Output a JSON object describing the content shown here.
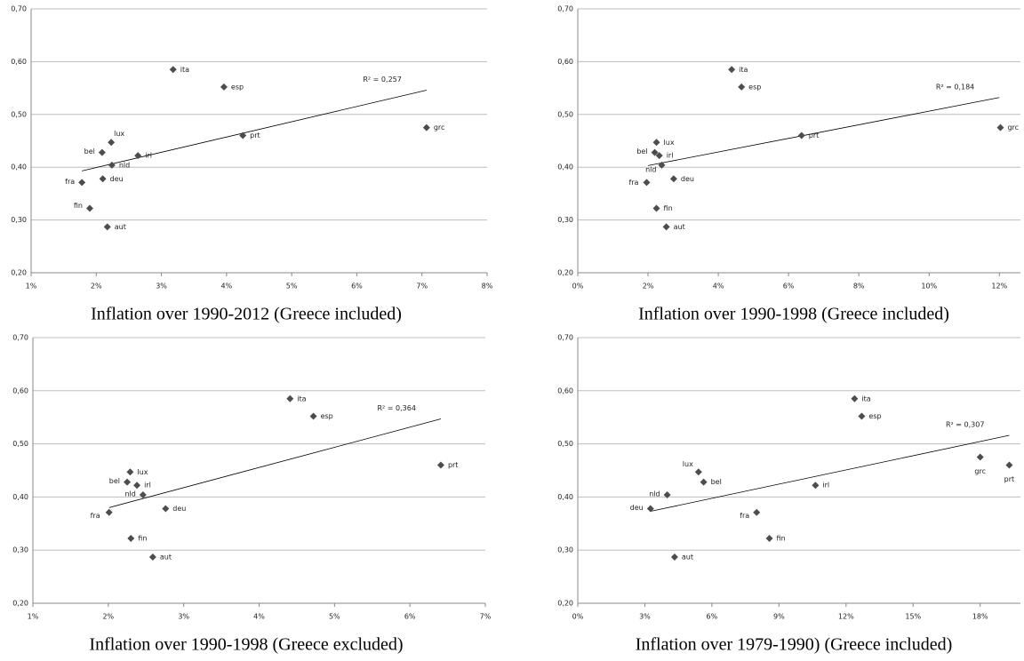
{
  "chart_data": [
    {
      "type": "scatter",
      "title": "Inflation over 1990-2012 (Greece included)",
      "labels": [
        "ita",
        "esp",
        "prt",
        "grc",
        "lux",
        "bel",
        "irl",
        "nld",
        "deu",
        "fra",
        "fin",
        "aut"
      ],
      "x": [
        3.18,
        3.96,
        4.25,
        7.07,
        2.23,
        2.09,
        2.64,
        2.24,
        2.1,
        1.78,
        1.9,
        2.17
      ],
      "y": [
        0.585,
        0.552,
        0.46,
        0.475,
        0.447,
        0.428,
        0.422,
        0.404,
        0.378,
        0.371,
        0.322,
        0.287
      ],
      "color": "#4d4d4d",
      "grid": true,
      "xlim": [
        1,
        8
      ],
      "ylim": [
        0.2,
        0.7
      ],
      "xticks": [
        {
          "value": 1,
          "label": "1%"
        },
        {
          "value": 2,
          "label": "2%"
        },
        {
          "value": 3,
          "label": "3%"
        },
        {
          "value": 4,
          "label": "4%"
        },
        {
          "value": 5,
          "label": "5%"
        },
        {
          "value": 6,
          "label": "6%"
        },
        {
          "value": 7,
          "label": "7%"
        },
        {
          "value": 8,
          "label": "8%"
        }
      ],
      "yticks": [
        {
          "value": 0.2,
          "label": "0,20"
        },
        {
          "value": 0.3,
          "label": "0,30"
        },
        {
          "value": 0.4,
          "label": "0,40"
        },
        {
          "value": 0.5,
          "label": "0,50"
        },
        {
          "value": 0.6,
          "label": "0,60"
        },
        {
          "value": 0.7,
          "label": "0,70"
        }
      ],
      "trendline": {
        "x": [
          1.78,
          7.07
        ],
        "y": [
          0.393,
          0.546
        ],
        "color": "#000000"
      },
      "annotation": "R² = 0,257"
    },
    {
      "type": "scatter",
      "title": "Inflation over 1990-1998 (Greece included)",
      "labels": [
        "ita",
        "esp",
        "prt",
        "grc",
        "lux",
        "bel",
        "irl",
        "nld",
        "deu",
        "fra",
        "fin",
        "aut"
      ],
      "x": [
        4.38,
        4.66,
        6.37,
        12.03,
        2.24,
        2.19,
        2.32,
        2.39,
        2.73,
        1.96,
        2.24,
        2.52
      ],
      "y": [
        0.585,
        0.552,
        0.46,
        0.475,
        0.447,
        0.428,
        0.422,
        0.404,
        0.378,
        0.371,
        0.322,
        0.287
      ],
      "color": "#4d4d4d",
      "grid": true,
      "xlim": [
        0,
        12.6
      ],
      "ylim": [
        0.2,
        0.7
      ],
      "xticks": [
        {
          "value": 0,
          "label": "0%"
        },
        {
          "value": 2,
          "label": "2%"
        },
        {
          "value": 4,
          "label": "4%"
        },
        {
          "value": 6,
          "label": "6%"
        },
        {
          "value": 8,
          "label": "8%"
        },
        {
          "value": 10,
          "label": "10%"
        },
        {
          "value": 12,
          "label": "12%"
        }
      ],
      "yticks": [
        {
          "value": 0.2,
          "label": "0,20"
        },
        {
          "value": 0.3,
          "label": "0,30"
        },
        {
          "value": 0.4,
          "label": "0,40"
        },
        {
          "value": 0.5,
          "label": "0,50"
        },
        {
          "value": 0.6,
          "label": "0,60"
        },
        {
          "value": 0.7,
          "label": "0,70"
        }
      ],
      "trendline": {
        "x": [
          2.0,
          12.0
        ],
        "y": [
          0.403,
          0.532
        ],
        "color": "#000000"
      },
      "annotation": "R² = 0,184"
    },
    {
      "type": "scatter",
      "title": "Inflation over 1990-1998 (Greece excluded)",
      "labels": [
        "ita",
        "esp",
        "prt",
        "lux",
        "bel",
        "irl",
        "nld",
        "deu",
        "fra",
        "fin",
        "aut"
      ],
      "x": [
        4.41,
        4.72,
        6.41,
        2.29,
        2.25,
        2.38,
        2.46,
        2.76,
        2.01,
        2.3,
        2.59
      ],
      "y": [
        0.585,
        0.552,
        0.46,
        0.447,
        0.428,
        0.422,
        0.404,
        0.378,
        0.371,
        0.322,
        0.287
      ],
      "color": "#4d4d4d",
      "grid": true,
      "xlim": [
        1,
        7
      ],
      "ylim": [
        0.2,
        0.7
      ],
      "xticks": [
        {
          "value": 1,
          "label": "1%"
        },
        {
          "value": 2,
          "label": "2%"
        },
        {
          "value": 3,
          "label": "3%"
        },
        {
          "value": 4,
          "label": "4%"
        },
        {
          "value": 5,
          "label": "5%"
        },
        {
          "value": 6,
          "label": "6%"
        },
        {
          "value": 7,
          "label": "7%"
        }
      ],
      "yticks": [
        {
          "value": 0.2,
          "label": "0,20"
        },
        {
          "value": 0.3,
          "label": "0,30"
        },
        {
          "value": 0.4,
          "label": "0,40"
        },
        {
          "value": 0.5,
          "label": "0,50"
        },
        {
          "value": 0.6,
          "label": "0,60"
        },
        {
          "value": 0.7,
          "label": "0,70"
        }
      ],
      "trendline": {
        "x": [
          2.01,
          6.41
        ],
        "y": [
          0.38,
          0.547
        ],
        "color": "#000000"
      },
      "annotation": "R² = 0,364"
    },
    {
      "type": "scatter",
      "title": "Inflation over 1979-1990) (Greece included)",
      "labels": [
        "ita",
        "esp",
        "prt",
        "grc",
        "lux",
        "bel",
        "irl",
        "nld",
        "deu",
        "fra",
        "fin",
        "aut"
      ],
      "x": [
        12.38,
        12.7,
        19.3,
        18.0,
        5.4,
        5.63,
        10.63,
        4.0,
        3.25,
        8.0,
        8.57,
        4.33
      ],
      "y": [
        0.585,
        0.552,
        0.46,
        0.475,
        0.447,
        0.428,
        0.422,
        0.404,
        0.378,
        0.371,
        0.322,
        0.287
      ],
      "color": "#4d4d4d",
      "grid": true,
      "xlim": [
        0,
        19.8
      ],
      "ylim": [
        0.2,
        0.7
      ],
      "xticks": [
        {
          "value": 0,
          "label": "0%"
        },
        {
          "value": 3,
          "label": "3%"
        },
        {
          "value": 6,
          "label": "6%"
        },
        {
          "value": 9,
          "label": "9%"
        },
        {
          "value": 12,
          "label": "12%"
        },
        {
          "value": 15,
          "label": "15%"
        },
        {
          "value": 18,
          "label": "18%"
        }
      ],
      "yticks": [
        {
          "value": 0.2,
          "label": "0,20"
        },
        {
          "value": 0.3,
          "label": "0,30"
        },
        {
          "value": 0.4,
          "label": "0,40"
        },
        {
          "value": 0.5,
          "label": "0,50"
        },
        {
          "value": 0.6,
          "label": "0,60"
        },
        {
          "value": 0.7,
          "label": "0,70"
        }
      ],
      "trendline": {
        "x": [
          3.25,
          19.3
        ],
        "y": [
          0.373,
          0.516
        ],
        "color": "#000000"
      },
      "annotation": "R² = 0,307"
    }
  ]
}
